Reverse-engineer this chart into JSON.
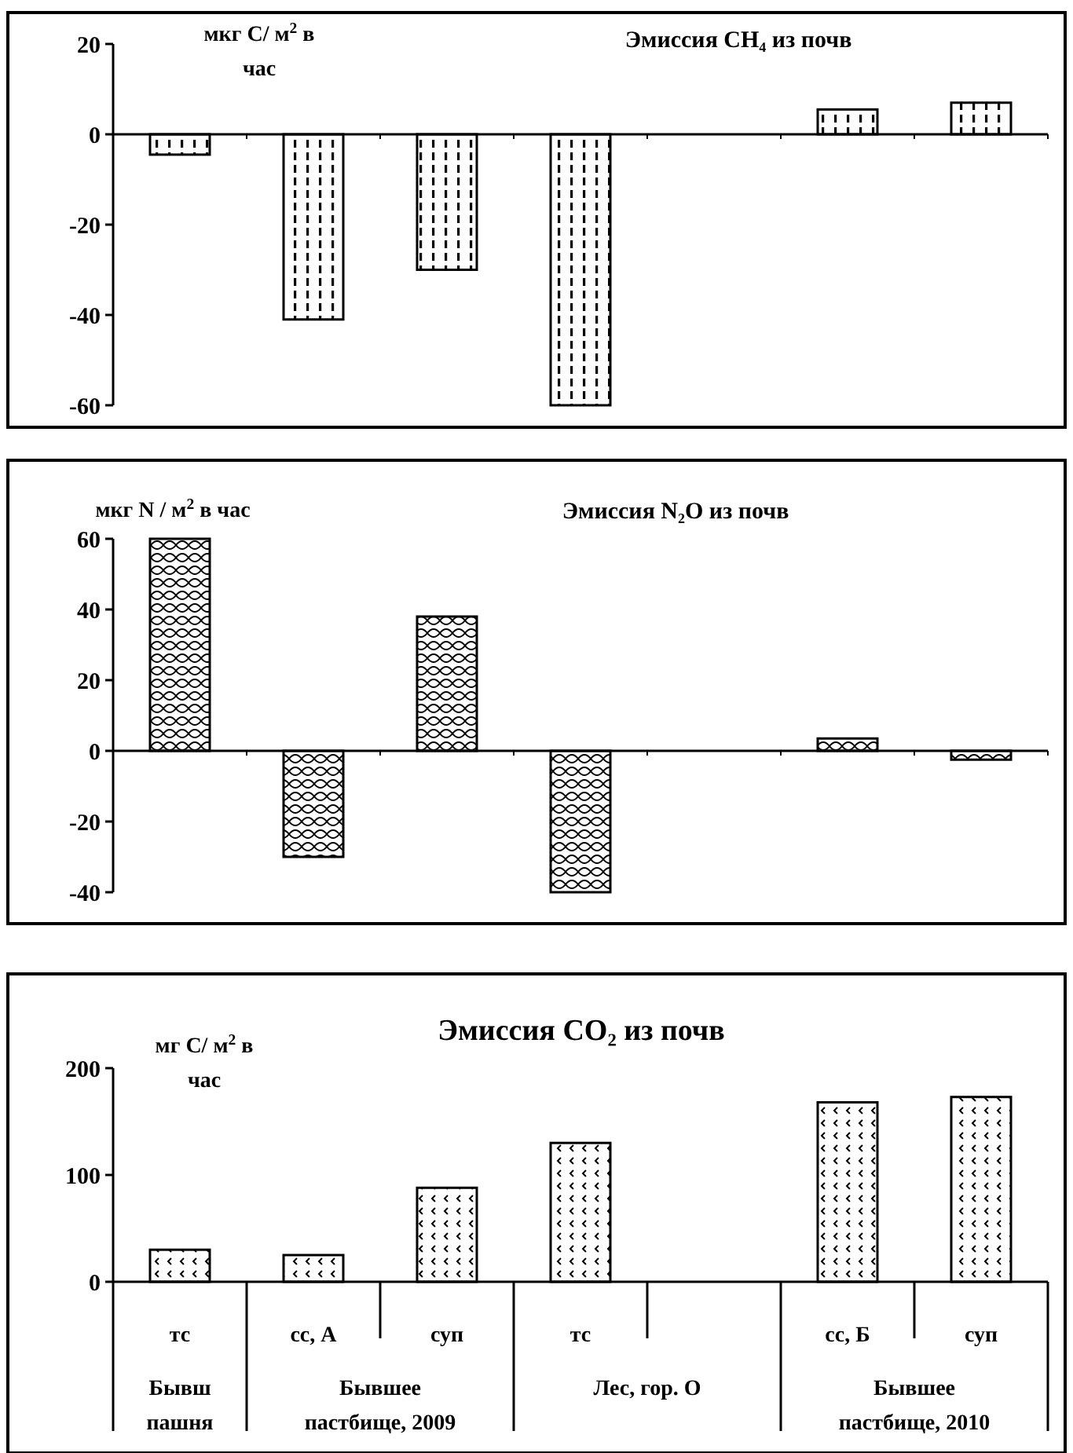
{
  "chart_data": [
    {
      "type": "bar",
      "title": "Эмиссия CH₄ из почв",
      "ylabel": "мкг C/ м$^{2}$ в час",
      "categories": [
        null,
        null,
        null,
        null,
        null,
        null,
        null
      ],
      "values": [
        -4.5,
        -41,
        -30,
        -60,
        null,
        5.5,
        7
      ],
      "color": "#000000",
      "ylim": [
        -60,
        20
      ],
      "yticks": [
        -60,
        -40,
        -20,
        0,
        20
      ]
    },
    {
      "type": "bar",
      "title": "Эмиссия N₂O из почв",
      "ylabel": "мкг N / м$^{2}$ в час",
      "categories": [
        null,
        null,
        null,
        null,
        null,
        null,
        null
      ],
      "values": [
        60,
        -30,
        38,
        -40,
        null,
        3.5,
        -2.5
      ],
      "color": "#000000",
      "ylim": [
        -40,
        60
      ],
      "yticks": [
        -40,
        -20,
        0,
        20,
        40,
        60
      ]
    },
    {
      "type": "bar",
      "title": "Эмиссия CO₂ из почв",
      "ylabel": "мг C/ м$^{2}$ в час",
      "categories": [
        "тс",
        "сс, А",
        "суп",
        "тс",
        null,
        "сс, Б",
        "суп"
      ],
      "values": [
        30,
        25,
        88,
        130,
        null,
        168,
        173
      ],
      "color": "#000000",
      "ylim": [
        0,
        200
      ],
      "yticks": [
        0,
        100,
        200
      ],
      "annotations": [
        "Бывш пашня",
        "Бывшее пастбище, 2009",
        "Лес, гор. О",
        "Бывшее пастбище, 2010"
      ]
    }
  ]
}
